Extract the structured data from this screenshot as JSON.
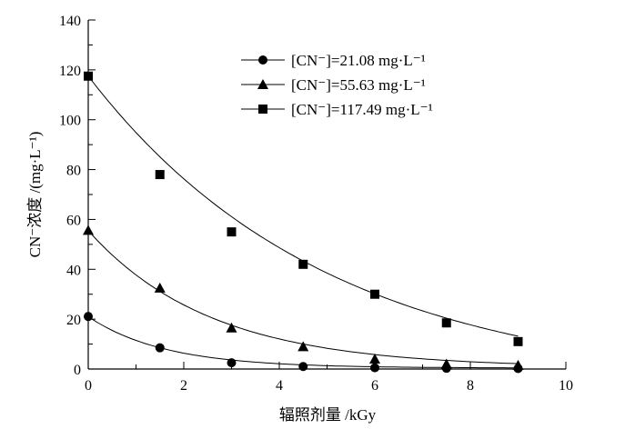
{
  "chart_data": {
    "type": "scatter",
    "title": "",
    "xlabel": "辐照剂量 /kGy",
    "ylabel": "CN⁻浓度 /(mg·L⁻¹)",
    "xlim": [
      0,
      10
    ],
    "ylim": [
      0,
      140
    ],
    "xticks": [
      0,
      2,
      4,
      6,
      8,
      10
    ],
    "yticks": [
      0,
      20,
      40,
      60,
      80,
      100,
      120,
      140
    ],
    "grid": false,
    "legend_position": "top-right",
    "x": [
      0,
      1.5,
      3,
      4.5,
      6,
      7.5,
      9
    ],
    "series": [
      {
        "name": "[CN⁻]=21.08 mg·L⁻¹",
        "marker": "circle",
        "values": [
          21.08,
          8.5,
          2.5,
          1.0,
          0.5,
          0.3,
          0.2
        ],
        "fit": {
          "a": 20.6,
          "k": 0.62,
          "c": 0.4
        }
      },
      {
        "name": "[CN⁻]=55.63 mg·L⁻¹",
        "marker": "triangle",
        "values": [
          55.63,
          32.5,
          16.5,
          9.0,
          4.0,
          2.0,
          1.5
        ],
        "fit": {
          "a": 55.0,
          "k": 0.39,
          "c": 0.5
        }
      },
      {
        "name": "[CN⁻]=117.49 mg·L⁻¹",
        "marker": "square",
        "values": [
          117.49,
          78,
          55,
          42,
          30,
          18.5,
          11
        ],
        "fit": {
          "a": 125.0,
          "k": 0.2,
          "c": -7.5
        }
      }
    ]
  }
}
